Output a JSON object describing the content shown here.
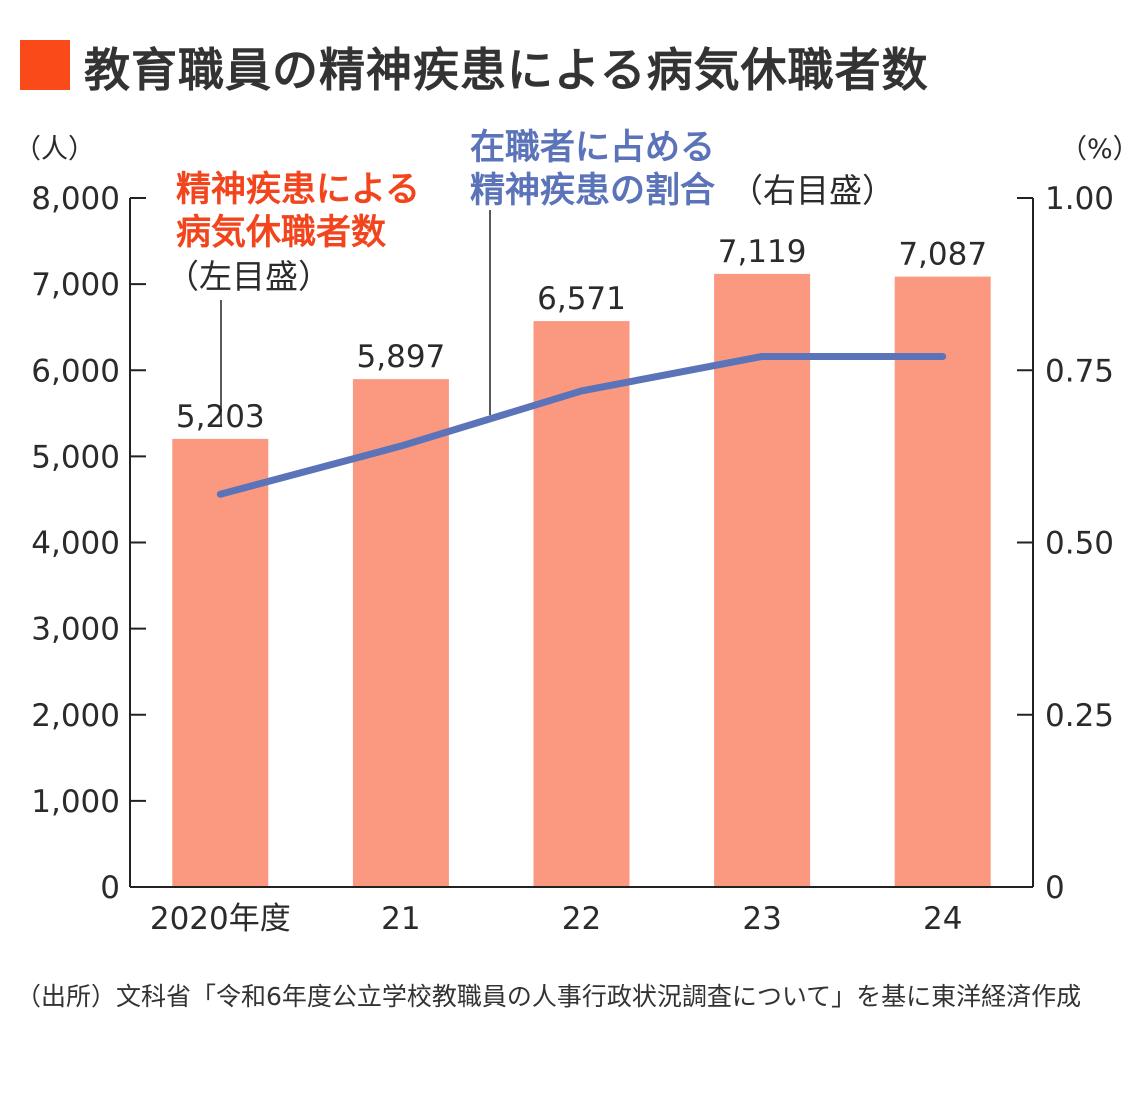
{
  "title": "教育職員の精神疾患による病気休職者数",
  "source": "（出所）文科省「令和6年度公立学校教職員の人事行政状況調査について」を基に東洋経済作成",
  "colors": {
    "bar": "#fb9880",
    "line": "#5b73b8",
    "bar_label": "#f2441d",
    "title_square": "#fb4a1a"
  },
  "chart_data": {
    "type": "bar+line",
    "categories": [
      "2020年度",
      "21",
      "22",
      "23",
      "24"
    ],
    "left_unit": "（人）",
    "right_unit": "（%）",
    "left_axis": {
      "ylim": [
        0,
        8000
      ],
      "ticks": [
        "0",
        "1,000",
        "2,000",
        "3,000",
        "4,000",
        "5,000",
        "6,000",
        "7,000",
        "8,000"
      ]
    },
    "right_axis": {
      "ylim": [
        0,
        1.0
      ],
      "ticks": [
        "0",
        "0.25",
        "0.50",
        "0.75",
        "1.00"
      ]
    },
    "grid": false,
    "series": [
      {
        "name": "精神疾患による病気休職者数",
        "name_lines": [
          "精神疾患による",
          "病気休職者数"
        ],
        "axis_note": "（左目盛）",
        "type": "bar",
        "axis": "left",
        "values": [
          5203,
          5897,
          6571,
          7119,
          7087
        ],
        "labels": [
          "5,203",
          "5,897",
          "6,571",
          "7,119",
          "7,087"
        ]
      },
      {
        "name": "在職者に占める精神疾患の割合",
        "name_lines": [
          "在職者に占める",
          "精神疾患の割合"
        ],
        "axis_note": "（右目盛）",
        "type": "line",
        "axis": "right",
        "values": [
          0.57,
          0.64,
          0.72,
          0.77,
          0.77
        ]
      }
    ]
  }
}
